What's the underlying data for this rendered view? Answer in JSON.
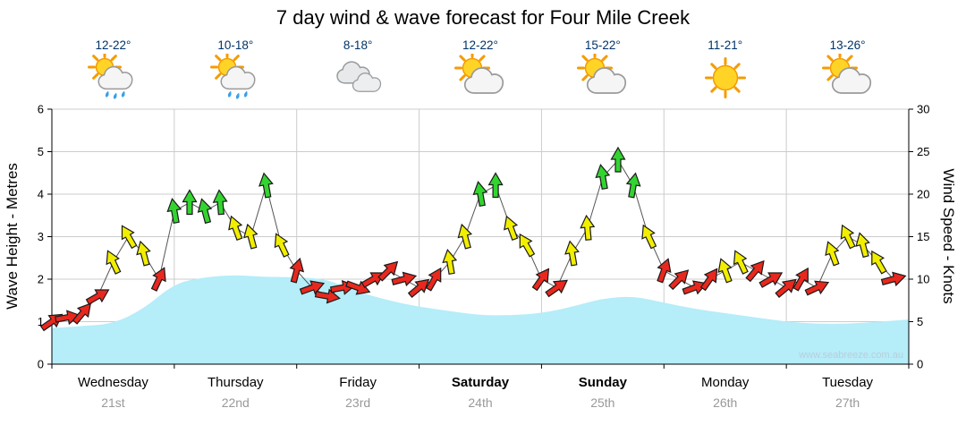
{
  "title": "7 day wind & wave forecast for Four Mile Creek",
  "watermark": "www.seabreeze.com.au",
  "axes": {
    "left_label": "Wave Height - Metres",
    "right_label": "Wind Speed - Knots",
    "left_ticks": [
      0,
      1,
      2,
      3,
      4,
      5,
      6
    ],
    "right_ticks": [
      0,
      5,
      10,
      15,
      20,
      25,
      30
    ]
  },
  "colors": {
    "red": "#e8281e",
    "yellow": "#f2ee00",
    "green": "#33d430",
    "wave": "#b5edf9",
    "grid": "#cccccc",
    "axis": "#000000",
    "wind_line": "#555555",
    "temp_text": "#003366"
  },
  "days": [
    {
      "name": "Wednesday",
      "date": "21st",
      "temp": "12-22°",
      "icon": "sun-cloud-rain",
      "bold": false
    },
    {
      "name": "Thursday",
      "date": "22nd",
      "temp": "10-18°",
      "icon": "sun-cloud-rain",
      "bold": false
    },
    {
      "name": "Friday",
      "date": "23rd",
      "temp": "8-18°",
      "icon": "cloud",
      "bold": false
    },
    {
      "name": "Saturday",
      "date": "24th",
      "temp": "12-22°",
      "icon": "sun-cloud",
      "bold": true
    },
    {
      "name": "Sunday",
      "date": "25th",
      "temp": "15-22°",
      "icon": "sun-cloud",
      "bold": true
    },
    {
      "name": "Monday",
      "date": "26th",
      "temp": "11-21°",
      "icon": "sun",
      "bold": false
    },
    {
      "name": "Tuesday",
      "date": "27th",
      "temp": "13-26°",
      "icon": "sun-cloud",
      "bold": false
    }
  ],
  "chart_data": [
    {
      "type": "area",
      "name": "Wave Height",
      "units": "metres",
      "ylim": [
        0,
        6
      ],
      "total_hours": 168,
      "hours_per_day": 24,
      "x_hours": [
        0,
        6,
        12,
        18,
        24,
        30,
        36,
        42,
        48,
        54,
        60,
        66,
        72,
        78,
        84,
        90,
        96,
        102,
        108,
        114,
        120,
        126,
        132,
        138,
        144,
        150,
        156,
        162,
        168
      ],
      "values": [
        0.85,
        0.9,
        0.95,
        1.3,
        1.9,
        2.05,
        2.1,
        2.05,
        2.05,
        2.0,
        1.7,
        1.5,
        1.35,
        1.25,
        1.15,
        1.15,
        1.2,
        1.35,
        1.55,
        1.6,
        1.45,
        1.3,
        1.2,
        1.1,
        1.0,
        0.95,
        0.95,
        1.0,
        1.05
      ],
      "color_key": "wave"
    },
    {
      "type": "line",
      "style": "directional-arrows",
      "name": "Wind Speed",
      "units": "knots",
      "ylim": [
        0,
        30
      ],
      "total_hours": 168,
      "point_format": [
        "hour",
        "knots",
        "direction_deg",
        "color"
      ],
      "color_legend": {
        "r": "red",
        "y": "yellow",
        "g": "green"
      },
      "points": [
        [
          0,
          5,
          55,
          "r"
        ],
        [
          3,
          5.5,
          80,
          "r"
        ],
        [
          6,
          6,
          40,
          "r"
        ],
        [
          9,
          8,
          60,
          "r"
        ],
        [
          12,
          12,
          -25,
          "y"
        ],
        [
          15,
          15,
          -30,
          "y"
        ],
        [
          18,
          13,
          -15,
          "y"
        ],
        [
          21,
          10,
          25,
          "r"
        ],
        [
          24,
          18,
          -10,
          "g"
        ],
        [
          27,
          19,
          0,
          "g"
        ],
        [
          30,
          18,
          -15,
          "g"
        ],
        [
          33,
          19,
          -5,
          "g"
        ],
        [
          36,
          16,
          -20,
          "y"
        ],
        [
          39,
          15,
          -15,
          "y"
        ],
        [
          42,
          21,
          -10,
          "g"
        ],
        [
          45,
          14,
          -25,
          "y"
        ],
        [
          48,
          11,
          15,
          "r"
        ],
        [
          51,
          9,
          70,
          "r"
        ],
        [
          54,
          8,
          100,
          "r"
        ],
        [
          57,
          9,
          80,
          "r"
        ],
        [
          60,
          9,
          110,
          "r"
        ],
        [
          63,
          10,
          60,
          "r"
        ],
        [
          66,
          11,
          45,
          "r"
        ],
        [
          69,
          10,
          75,
          "r"
        ],
        [
          72,
          9,
          50,
          "r"
        ],
        [
          75,
          10,
          30,
          "r"
        ],
        [
          78,
          12,
          -10,
          "y"
        ],
        [
          81,
          15,
          -15,
          "y"
        ],
        [
          84,
          20,
          -10,
          "g"
        ],
        [
          87,
          21,
          0,
          "g"
        ],
        [
          90,
          16,
          -20,
          "y"
        ],
        [
          93,
          14,
          -30,
          "y"
        ],
        [
          96,
          10,
          35,
          "r"
        ],
        [
          99,
          9,
          55,
          "r"
        ],
        [
          102,
          13,
          -10,
          "y"
        ],
        [
          105,
          16,
          -5,
          "y"
        ],
        [
          108,
          22,
          -10,
          "g"
        ],
        [
          111,
          24,
          0,
          "g"
        ],
        [
          114,
          21,
          10,
          "g"
        ],
        [
          117,
          15,
          -25,
          "y"
        ],
        [
          120,
          11,
          20,
          "r"
        ],
        [
          123,
          10,
          45,
          "r"
        ],
        [
          126,
          9,
          70,
          "r"
        ],
        [
          129,
          10,
          35,
          "r"
        ],
        [
          132,
          11,
          -20,
          "y"
        ],
        [
          135,
          12,
          -25,
          "y"
        ],
        [
          138,
          11,
          40,
          "r"
        ],
        [
          141,
          10,
          60,
          "r"
        ],
        [
          144,
          9,
          50,
          "r"
        ],
        [
          147,
          10,
          30,
          "r"
        ],
        [
          150,
          9,
          65,
          "r"
        ],
        [
          153,
          13,
          -20,
          "y"
        ],
        [
          156,
          15,
          -25,
          "y"
        ],
        [
          159,
          14,
          -15,
          "y"
        ],
        [
          162,
          12,
          -30,
          "y"
        ],
        [
          165,
          10,
          75,
          "r"
        ]
      ]
    }
  ]
}
